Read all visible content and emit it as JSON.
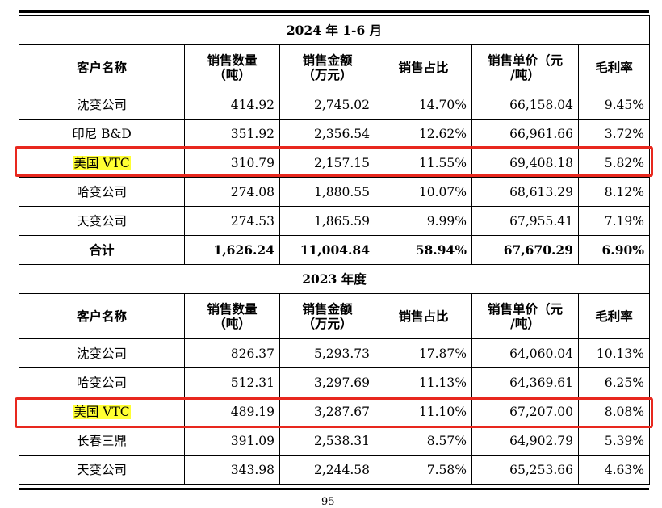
{
  "headers": [
    "客户名称",
    "销售数量（吨）",
    "销售金额（万元）",
    "销售占比",
    "销售单价（元/吨）",
    "毛利率"
  ],
  "sections": [
    {
      "period": "2024 年 1-6 月",
      "rows": [
        {
          "name": "沈变公司",
          "qty": "414.92",
          "amount": "2,745.02",
          "share": "14.70%",
          "price": "66,158.04",
          "margin": "9.45%"
        },
        {
          "name": "印尼 B&D",
          "qty": "351.92",
          "amount": "2,356.54",
          "share": "12.62%",
          "price": "66,961.66",
          "margin": "3.72%"
        },
        {
          "name": "美国 VTC",
          "qty": "310.79",
          "amount": "2,157.15",
          "share": "11.55%",
          "price": "69,408.18",
          "margin": "5.82%"
        },
        {
          "name": "哈变公司",
          "qty": "274.08",
          "amount": "1,880.55",
          "share": "10.07%",
          "price": "68,613.29",
          "margin": "8.12%"
        },
        {
          "name": "天变公司",
          "qty": "274.53",
          "amount": "1,865.59",
          "share": "9.99%",
          "price": "67,955.41",
          "margin": "7.19%"
        }
      ],
      "total": {
        "name": "合计",
        "qty": "1,626.24",
        "amount": "11,004.84",
        "share": "58.94%",
        "price": "67,670.29",
        "margin": "6.90%"
      }
    },
    {
      "period": "2023 年度",
      "rows": [
        {
          "name": "沈变公司",
          "qty": "826.37",
          "amount": "5,293.73",
          "share": "17.87%",
          "price": "64,060.04",
          "margin": "10.13%"
        },
        {
          "name": "哈变公司",
          "qty": "512.31",
          "amount": "3,297.69",
          "share": "11.13%",
          "price": "64,369.61",
          "margin": "6.25%"
        },
        {
          "name": "美国 VTC",
          "qty": "489.19",
          "amount": "3,287.67",
          "share": "11.10%",
          "price": "67,207.00",
          "margin": "8.08%"
        },
        {
          "name": "长春三鼎",
          "qty": "391.09",
          "amount": "2,538.31",
          "share": "8.57%",
          "price": "64,902.79",
          "margin": "5.39%"
        },
        {
          "name": "天变公司",
          "qty": "343.98",
          "amount": "2,244.58",
          "share": "7.58%",
          "price": "65,253.66",
          "margin": "4.63%"
        }
      ]
    }
  ],
  "highlight_customer": "美国 VTC",
  "highlight_color": "#ffff33",
  "box_color": "#e8281e",
  "page_number": "95"
}
